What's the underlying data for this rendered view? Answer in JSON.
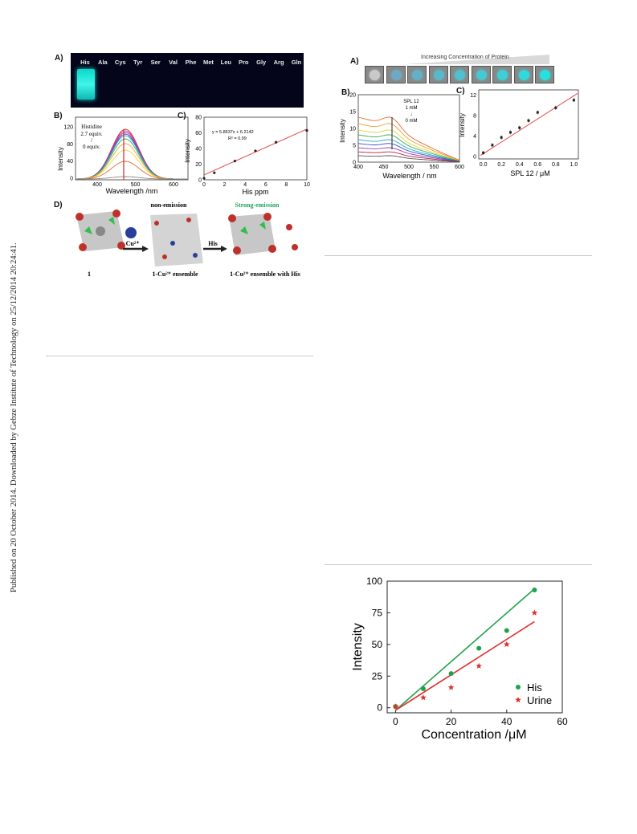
{
  "sidebar": {
    "published_text": "Published on 20 October 2014. Downloaded by Gebze Institute of Technology on 25/12/2014 20:24:41."
  },
  "fig_left": {
    "panel_a": {
      "label": "A)",
      "amino_acids": [
        "His",
        "Ala",
        "Cys",
        "Tyr",
        "Ser",
        "Val",
        "Phe",
        "Met",
        "Leu",
        "Pro",
        "Gly",
        "Arg",
        "Gln"
      ]
    },
    "panel_b": {
      "label": "B)",
      "annotation_lines": [
        "Histidine",
        "2.7 equiv.",
        "/",
        "0 equiv."
      ],
      "xlabel": "Wavelength /nm",
      "ylabel": "Intensity",
      "yticks": [
        "0",
        "40",
        "80",
        "120"
      ],
      "xticks": [
        "400",
        "500",
        "600"
      ]
    },
    "panel_c": {
      "label": "C)",
      "equation": "y = 5.8637x + 6.2142",
      "r2": "R² = 0.99",
      "xlabel": "His ppm",
      "ylabel": "Intensity",
      "yticks": [
        "0",
        "20",
        "40",
        "60",
        "80"
      ],
      "xticks": [
        "0",
        "2",
        "4",
        "6",
        "8",
        "10"
      ]
    },
    "panel_d": {
      "label": "D)",
      "non_emission": "non-emission",
      "strong_emission": "Strong-emission",
      "cu_label": "Cu²⁺",
      "his_label": "His",
      "caption_1": "1",
      "caption_2": "1-Cu²⁺ ensemble",
      "caption_3": "1-Cu²⁺ ensemble with His"
    }
  },
  "fig_right": {
    "panel_a": {
      "label": "A)",
      "banner": "Increasing Concentration of Protein"
    },
    "panel_b": {
      "label": "B)",
      "annotation_lines": [
        "SPL 12",
        "1 mM",
        "↓",
        "0 mM"
      ],
      "xlabel": "Wavelength / nm",
      "ylabel": "Intensity",
      "yticks": [
        "0",
        "5",
        "10",
        "15",
        "20"
      ],
      "xticks": [
        "400",
        "450",
        "500",
        "550",
        "600"
      ]
    },
    "panel_c": {
      "label": "C)",
      "xlabel": "SPL 12 / μM",
      "ylabel": "Intensity",
      "yticks": [
        "0",
        "4",
        "8",
        "12"
      ],
      "xticks": [
        "0.0",
        "0.2",
        "0.4",
        "0.6",
        "0.8",
        "1.0"
      ]
    }
  },
  "chart_data": [
    {
      "type": "line",
      "title": "",
      "xlabel": "His ppm",
      "ylabel": "Intensity",
      "xlim": [
        0,
        10
      ],
      "ylim": [
        0,
        80
      ],
      "series": [
        {
          "x": [
            0,
            1,
            3,
            5,
            7,
            10
          ],
          "values": [
            2,
            9,
            24,
            37,
            48,
            63
          ]
        }
      ],
      "fit": {
        "slope": 5.8637,
        "intercept": 6.2142
      }
    },
    {
      "type": "scatter",
      "title": "",
      "xlabel": "SPL 12 / μM",
      "ylabel": "Intensity",
      "xlim": [
        -0.05,
        1.05
      ],
      "ylim": [
        -0.5,
        13
      ],
      "series": [
        {
          "x": [
            0.0,
            0.1,
            0.2,
            0.3,
            0.4,
            0.5,
            0.6,
            0.8,
            1.0
          ],
          "values": [
            0.7,
            2.2,
            3.7,
            4.7,
            5.6,
            7.0,
            8.6,
            9.5,
            11.0
          ]
        }
      ]
    },
    {
      "type": "scatter",
      "title": "",
      "xlabel": "Concentration /μM",
      "ylabel": "Intensity",
      "xlim": [
        -3,
        60
      ],
      "ylim": [
        -4,
        100
      ],
      "xticks": [
        "0",
        "20",
        "40",
        "60"
      ],
      "yticks": [
        "0",
        "25",
        "50",
        "75",
        "100"
      ],
      "legend": "bottom-right",
      "series": [
        {
          "name": "His",
          "color": "#1fa34a",
          "marker": "circle",
          "x": [
            0,
            10,
            20,
            30,
            40,
            50
          ],
          "values": [
            1,
            15,
            27,
            47,
            61,
            93
          ]
        },
        {
          "name": "Urine",
          "color": "#e03030",
          "marker": "star",
          "x": [
            0,
            10,
            20,
            30,
            40,
            50
          ],
          "values": [
            1,
            8,
            16,
            33,
            50,
            75
          ]
        }
      ],
      "fits": [
        {
          "series": "His",
          "x": [
            0,
            50
          ],
          "values": [
            -2,
            94
          ]
        },
        {
          "series": "Urine",
          "x": [
            0,
            50
          ],
          "values": [
            -2,
            68
          ]
        }
      ]
    }
  ]
}
